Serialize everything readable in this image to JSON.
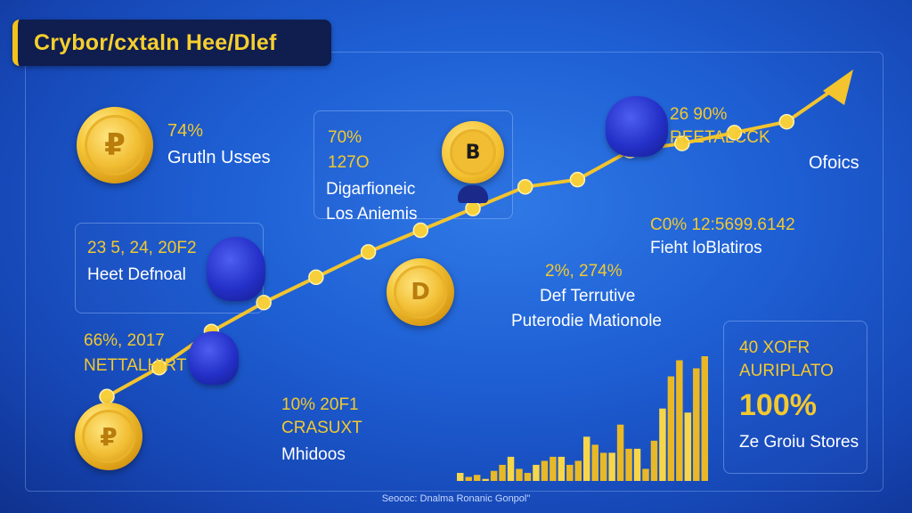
{
  "title": "Crybor/cxtaln Hee/Dlef",
  "source": "Seococ: Dnalma Ronanic Gonpol\"",
  "callouts": {
    "topleft": {
      "value": "74%",
      "label": "Grutln Usses"
    },
    "midleft": {
      "value": "23 5, 24, 20F2",
      "label": "Heet Defnoal"
    },
    "lowleft": {
      "value": "66%, 2017",
      "label": "NETTALHIRT"
    },
    "center_top": {
      "value1": "70%",
      "value2": "127O",
      "label1": "Digarfioneic",
      "label2": "Los Aniemis"
    },
    "bottom_mid": {
      "value1": "10% 20F1",
      "value2": "CRASUXT",
      "label": "Mhidoos"
    },
    "center_mid": {
      "value": "2%, 274%",
      "label1": "Def Terrutive",
      "label2": "Puterodie Mationole"
    },
    "top_right": {
      "value": "26 90%",
      "label": "REETALCCK"
    },
    "arrow_label": "Ofoics",
    "right_mid": {
      "value": "C0% 12:5699.6142",
      "label": "Fieht loBlatiros"
    },
    "box_right": {
      "line1": "40 XOFR",
      "line2": "AURIPLATO",
      "big": "100%",
      "label": "Ze Groiu Stores"
    }
  },
  "colors": {
    "line": "#f3c42e",
    "accent": "#f6cf2e",
    "background": "#1e5fd4"
  },
  "chart_data": {
    "type": "line",
    "title": "Crybor/cxtaln Hee/Dlef",
    "xlabel": "",
    "ylabel": "",
    "series": [
      {
        "values": [
          12,
          20,
          30,
          38,
          45,
          52,
          58,
          64,
          70,
          72,
          80,
          82,
          85,
          88,
          98
        ]
      }
    ],
    "bars": [
      4,
      2,
      3,
      1,
      5,
      8,
      12,
      6,
      4,
      8,
      10,
      12,
      12,
      8,
      10,
      22,
      18,
      14,
      14,
      28,
      16,
      16,
      6,
      20,
      36,
      52,
      60,
      34,
      56,
      62
    ]
  }
}
